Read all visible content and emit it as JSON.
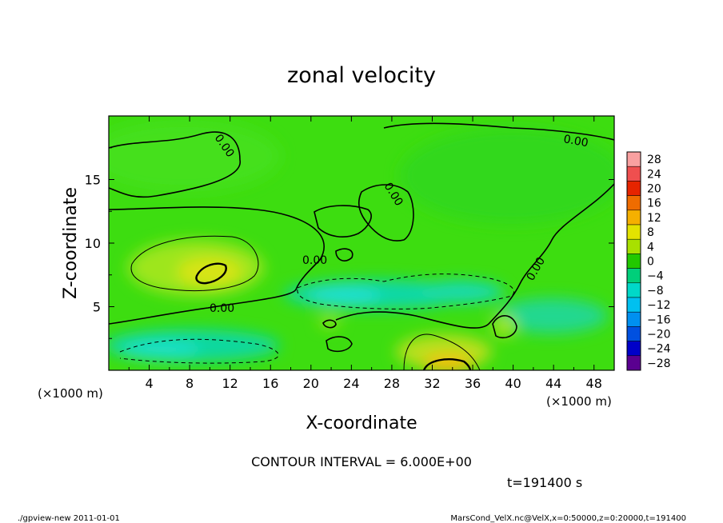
{
  "chart_data": {
    "type": "heatmap",
    "title": "zonal velocity",
    "xlabel": "X-coordinate",
    "ylabel": "Z-coordinate",
    "x_unit_label": "(×1000 m)",
    "y_unit_label": "(×1000 m)",
    "xlim": [
      0,
      50
    ],
    "ylim": [
      0,
      20
    ],
    "x_ticks": [
      4,
      8,
      12,
      16,
      20,
      24,
      28,
      32,
      36,
      40,
      44,
      48
    ],
    "y_ticks": [
      5,
      10,
      15
    ],
    "colorbar": {
      "levels": [
        28,
        24,
        20,
        16,
        12,
        8,
        4,
        0,
        -4,
        -8,
        -12,
        -16,
        -20,
        -24,
        -28
      ],
      "colors": [
        "#f9a0a0",
        "#ef4f4f",
        "#e62400",
        "#ef6c00",
        "#f5b000",
        "#e3e300",
        "#a8e000",
        "#22c800",
        "#00cf7a",
        "#00d8c8",
        "#00c0f0",
        "#0090f0",
        "#0050e0",
        "#0000c8",
        "#5a0090"
      ]
    },
    "contour_labels": [
      "0.00",
      "0.00",
      "0.00",
      "0.00",
      "0.00",
      "0.00"
    ],
    "contour_interval_text": "CONTOUR INTERVAL = 6.000E+00",
    "time_text": "t=191400 s",
    "regions": [
      {
        "name": "positive-core",
        "x": 10,
        "y": 7.8,
        "value": 12
      },
      {
        "name": "negative-band-left",
        "x": 6,
        "y": 1.8,
        "value": -8
      },
      {
        "name": "negative-band-mid",
        "x": 28,
        "y": 6,
        "value": -9
      },
      {
        "name": "positive-bottom",
        "x": 33,
        "y": 0.6,
        "value": 14
      }
    ]
  },
  "footer": {
    "left": "./gpview-new  2011-01-01",
    "right": "MarsCond_VelX.nc@VelX,x=0:50000,z=0:20000,t=191400"
  }
}
